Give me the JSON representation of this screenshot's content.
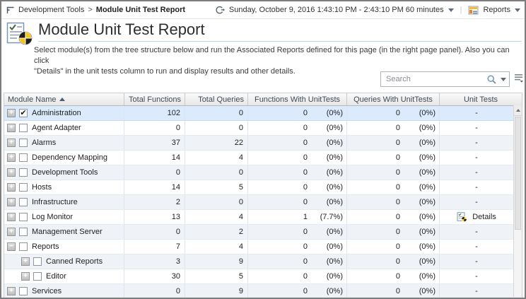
{
  "topbar": {
    "breadcrumb": {
      "parent": "Development Tools",
      "separator": ">",
      "current": "Module Unit Test Report"
    },
    "time_range_label": "Sunday, October 9, 2016 1:43:10 PM - 2:43:10 PM 60 minutes",
    "reports_label": "Reports"
  },
  "header": {
    "title": "Module Unit Test Report",
    "description_line1": "Select module(s) from the tree structure below and run the Associated Reports defined for this page (in the right page panel). Also you can click",
    "description_line2": "\"Details\" in the unit tests column to run and display results and other details."
  },
  "toolbar": {
    "search_placeholder": "Search"
  },
  "table": {
    "columns": [
      {
        "label": "Module Name",
        "sorted": "asc"
      },
      {
        "label": "Total Functions"
      },
      {
        "label": "Total Queries"
      },
      {
        "label": "Functions With UnitTests"
      },
      {
        "label": "Queries With UnitTests"
      },
      {
        "label": "Unit Tests"
      }
    ],
    "details_label": "Details",
    "rows": [
      {
        "name": "Administration",
        "level": 0,
        "expander": "plus",
        "checked": true,
        "selected": true,
        "total_functions": "102",
        "total_queries": "0",
        "functions_with_unittests": "0",
        "functions_with_unittests_pct": "(0%)",
        "queries_with_unittests": "0",
        "queries_with_unittests_pct": "(0%)",
        "unit_tests": "-"
      },
      {
        "name": "Agent Adapter",
        "level": 0,
        "expander": "plus",
        "checked": false,
        "selected": false,
        "total_functions": "0",
        "total_queries": "0",
        "functions_with_unittests": "0",
        "functions_with_unittests_pct": "(0%)",
        "queries_with_unittests": "0",
        "queries_with_unittests_pct": "(0%)",
        "unit_tests": "-"
      },
      {
        "name": "Alarms",
        "level": 0,
        "expander": "plus",
        "checked": false,
        "selected": false,
        "total_functions": "37",
        "total_queries": "22",
        "functions_with_unittests": "0",
        "functions_with_unittests_pct": "(0%)",
        "queries_with_unittests": "0",
        "queries_with_unittests_pct": "(0%)",
        "unit_tests": "-"
      },
      {
        "name": "Dependency Mapping",
        "level": 0,
        "expander": "plus",
        "checked": false,
        "selected": false,
        "total_functions": "14",
        "total_queries": "4",
        "functions_with_unittests": "0",
        "functions_with_unittests_pct": "(0%)",
        "queries_with_unittests": "0",
        "queries_with_unittests_pct": "(0%)",
        "unit_tests": "-"
      },
      {
        "name": "Development Tools",
        "level": 0,
        "expander": "plus",
        "checked": false,
        "selected": false,
        "total_functions": "0",
        "total_queries": "0",
        "functions_with_unittests": "0",
        "functions_with_unittests_pct": "(0%)",
        "queries_with_unittests": "0",
        "queries_with_unittests_pct": "(0%)",
        "unit_tests": "-"
      },
      {
        "name": "Hosts",
        "level": 0,
        "expander": "plus",
        "checked": false,
        "selected": false,
        "total_functions": "14",
        "total_queries": "5",
        "functions_with_unittests": "0",
        "functions_with_unittests_pct": "(0%)",
        "queries_with_unittests": "0",
        "queries_with_unittests_pct": "(0%)",
        "unit_tests": "-"
      },
      {
        "name": "Infrastructure",
        "level": 0,
        "expander": "plus",
        "checked": false,
        "selected": false,
        "total_functions": "2",
        "total_queries": "0",
        "functions_with_unittests": "0",
        "functions_with_unittests_pct": "(0%)",
        "queries_with_unittests": "0",
        "queries_with_unittests_pct": "(0%)",
        "unit_tests": "-"
      },
      {
        "name": "Log Monitor",
        "level": 0,
        "expander": "plus",
        "checked": false,
        "selected": false,
        "total_functions": "13",
        "total_queries": "4",
        "functions_with_unittests": "1",
        "functions_with_unittests_pct": "(7.7%)",
        "queries_with_unittests": "0",
        "queries_with_unittests_pct": "(0%)",
        "unit_tests": "details"
      },
      {
        "name": "Management Server",
        "level": 0,
        "expander": "plus",
        "checked": false,
        "selected": false,
        "total_functions": "0",
        "total_queries": "2",
        "functions_with_unittests": "0",
        "functions_with_unittests_pct": "(0%)",
        "queries_with_unittests": "0",
        "queries_with_unittests_pct": "(0%)",
        "unit_tests": "-"
      },
      {
        "name": "Reports",
        "level": 0,
        "expander": "minus",
        "checked": false,
        "selected": false,
        "total_functions": "7",
        "total_queries": "4",
        "functions_with_unittests": "0",
        "functions_with_unittests_pct": "(0%)",
        "queries_with_unittests": "0",
        "queries_with_unittests_pct": "(0%)",
        "unit_tests": "-"
      },
      {
        "name": "Canned Reports",
        "level": 1,
        "expander": "plus",
        "checked": false,
        "selected": false,
        "total_functions": "3",
        "total_queries": "9",
        "functions_with_unittests": "0",
        "functions_with_unittests_pct": "(0%)",
        "queries_with_unittests": "0",
        "queries_with_unittests_pct": "(0%)",
        "unit_tests": "-"
      },
      {
        "name": "Editor",
        "level": 1,
        "expander": "plus",
        "checked": false,
        "selected": false,
        "total_functions": "30",
        "total_queries": "5",
        "functions_with_unittests": "0",
        "functions_with_unittests_pct": "(0%)",
        "queries_with_unittests": "0",
        "queries_with_unittests_pct": "(0%)",
        "unit_tests": "-"
      },
      {
        "name": "Services",
        "level": 0,
        "expander": "plus",
        "checked": false,
        "selected": false,
        "total_functions": "0",
        "total_queries": "9",
        "functions_with_unittests": "0",
        "functions_with_unittests_pct": "(0%)",
        "queries_with_unittests": "0",
        "queries_with_unittests_pct": "(0%)",
        "unit_tests": "-"
      }
    ]
  },
  "colors": {
    "selected_row": "#dbeafc",
    "stripe_row": "#eff3f8",
    "title_underline": "#bcd9f0",
    "pie_yellow": "#f4c511",
    "pie_black": "#1c1c1c"
  }
}
